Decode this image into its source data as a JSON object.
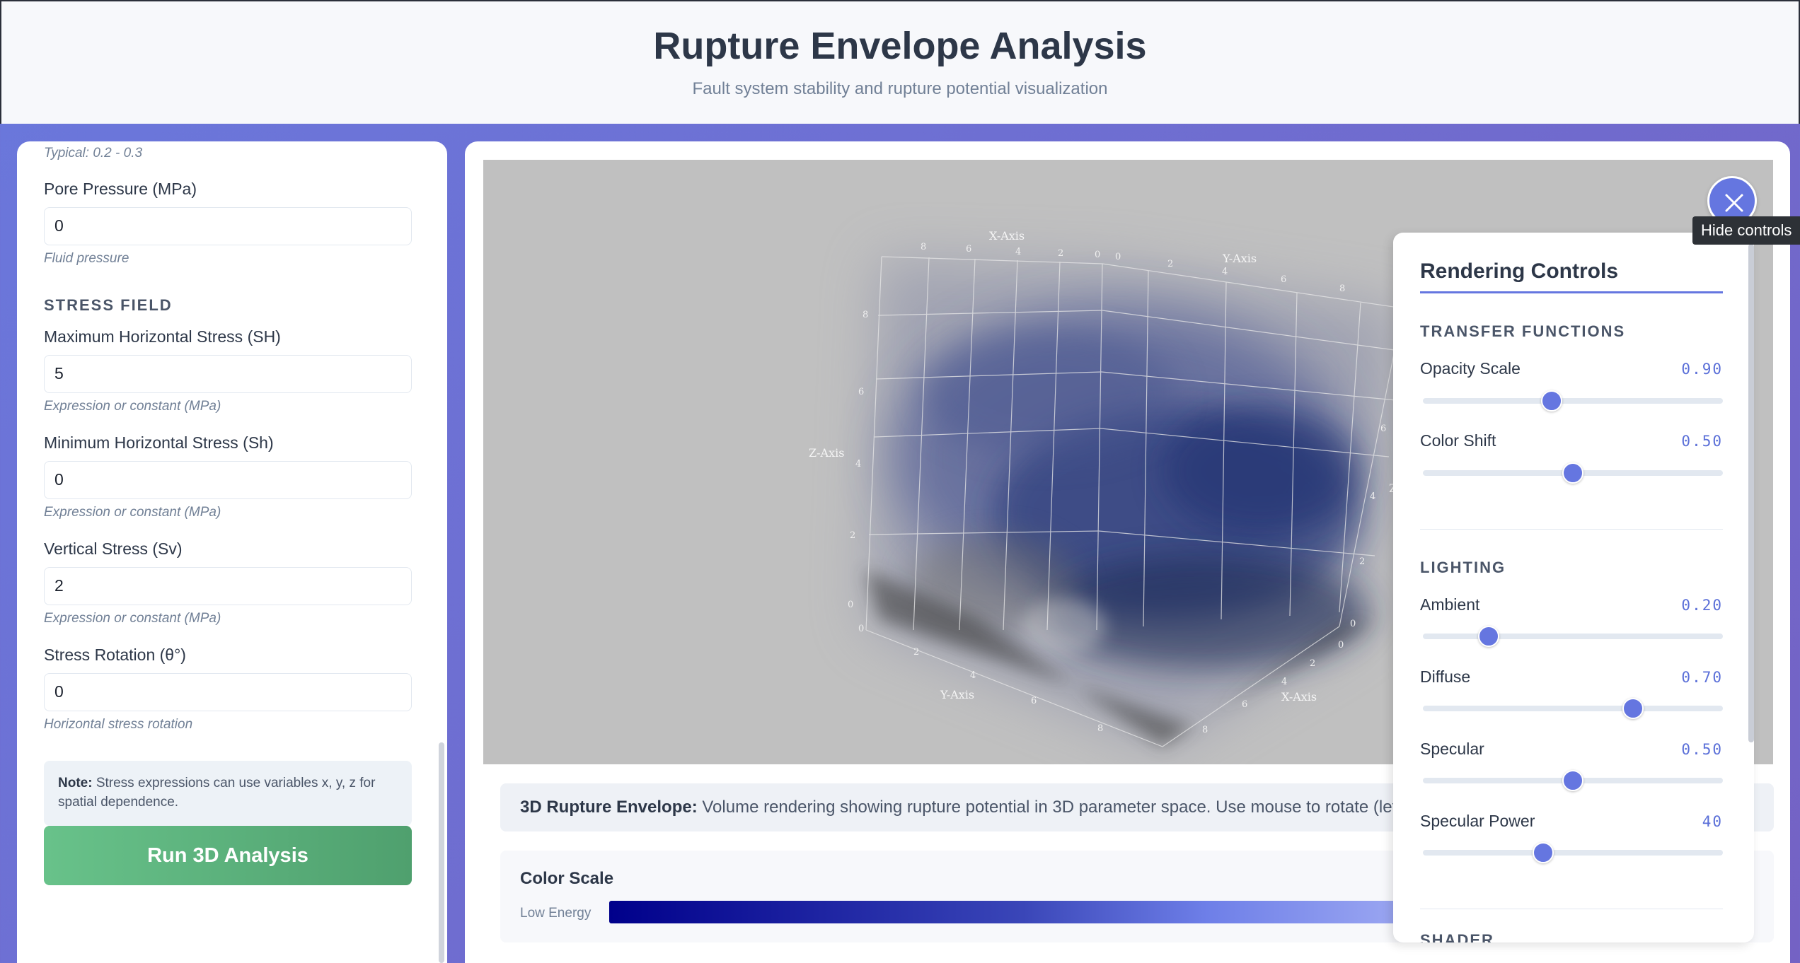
{
  "header": {
    "title": "Rupture Envelope Analysis",
    "subtitle": "Fault system stability and rupture potential visualization"
  },
  "left_panel": {
    "top_hint": "Typical: 0.2 - 0.3",
    "pore_pressure": {
      "label": "Pore Pressure (MPa)",
      "value": "0",
      "hint": "Fluid pressure"
    },
    "stress_section": "STRESS FIELD",
    "sh_max": {
      "label": "Maximum Horizontal Stress (SH)",
      "value": "5",
      "hint": "Expression or constant (MPa)"
    },
    "sh_min": {
      "label": "Minimum Horizontal Stress (Sh)",
      "value": "0",
      "hint": "Expression or constant (MPa)"
    },
    "sv": {
      "label": "Vertical Stress (Sv)",
      "value": "2",
      "hint": "Expression or constant (MPa)"
    },
    "rotation": {
      "label": "Stress Rotation (θ°)",
      "value": "0",
      "hint": "Horizontal stress rotation"
    },
    "note_bold": "Note:",
    "note_text": " Stress expressions can use variables x, y, z for spatial dependence.",
    "run_button": "Run 3D Analysis"
  },
  "viewport": {
    "x_axis_label": "X-Axis",
    "y_axis_label": "Y-Axis",
    "z_axis_label": "Z-Axis",
    "ticks_8_to_0": [
      "8",
      "6",
      "4",
      "2",
      "0"
    ],
    "ticks_0_to_8": [
      "0",
      "2",
      "4",
      "6",
      "8"
    ],
    "z_ticks": [
      "0",
      "2",
      "4",
      "6",
      "8"
    ],
    "z_partial": "Z"
  },
  "description": {
    "bold": "3D Rupture Envelope:",
    "text": " Volume rendering showing rupture potential in 3D parameter space. Use mouse to rotate (left), p"
  },
  "color_scale": {
    "title": "Color Scale",
    "low_label": "Low Energy"
  },
  "close_button_tooltip": "Hide controls",
  "controls": {
    "title": "Rendering Controls",
    "transfer_section": "TRANSFER FUNCTIONS",
    "lighting_section": "LIGHTING",
    "cut_section": "SHADER",
    "sliders": [
      {
        "label": "Opacity Scale",
        "value_text": "0.90",
        "fraction": 0.43
      },
      {
        "label": "Color Shift",
        "value_text": "0.50",
        "fraction": 0.5
      },
      {
        "label": "Ambient",
        "value_text": "0.20",
        "fraction": 0.22
      },
      {
        "label": "Diffuse",
        "value_text": "0.70",
        "fraction": 0.7
      },
      {
        "label": "Specular",
        "value_text": "0.50",
        "fraction": 0.5
      },
      {
        "label": "Specular Power",
        "value_text": "40",
        "fraction": 0.4
      }
    ],
    "colors": {
      "accent": "#6576e0",
      "value": "#5a6fd8"
    }
  }
}
